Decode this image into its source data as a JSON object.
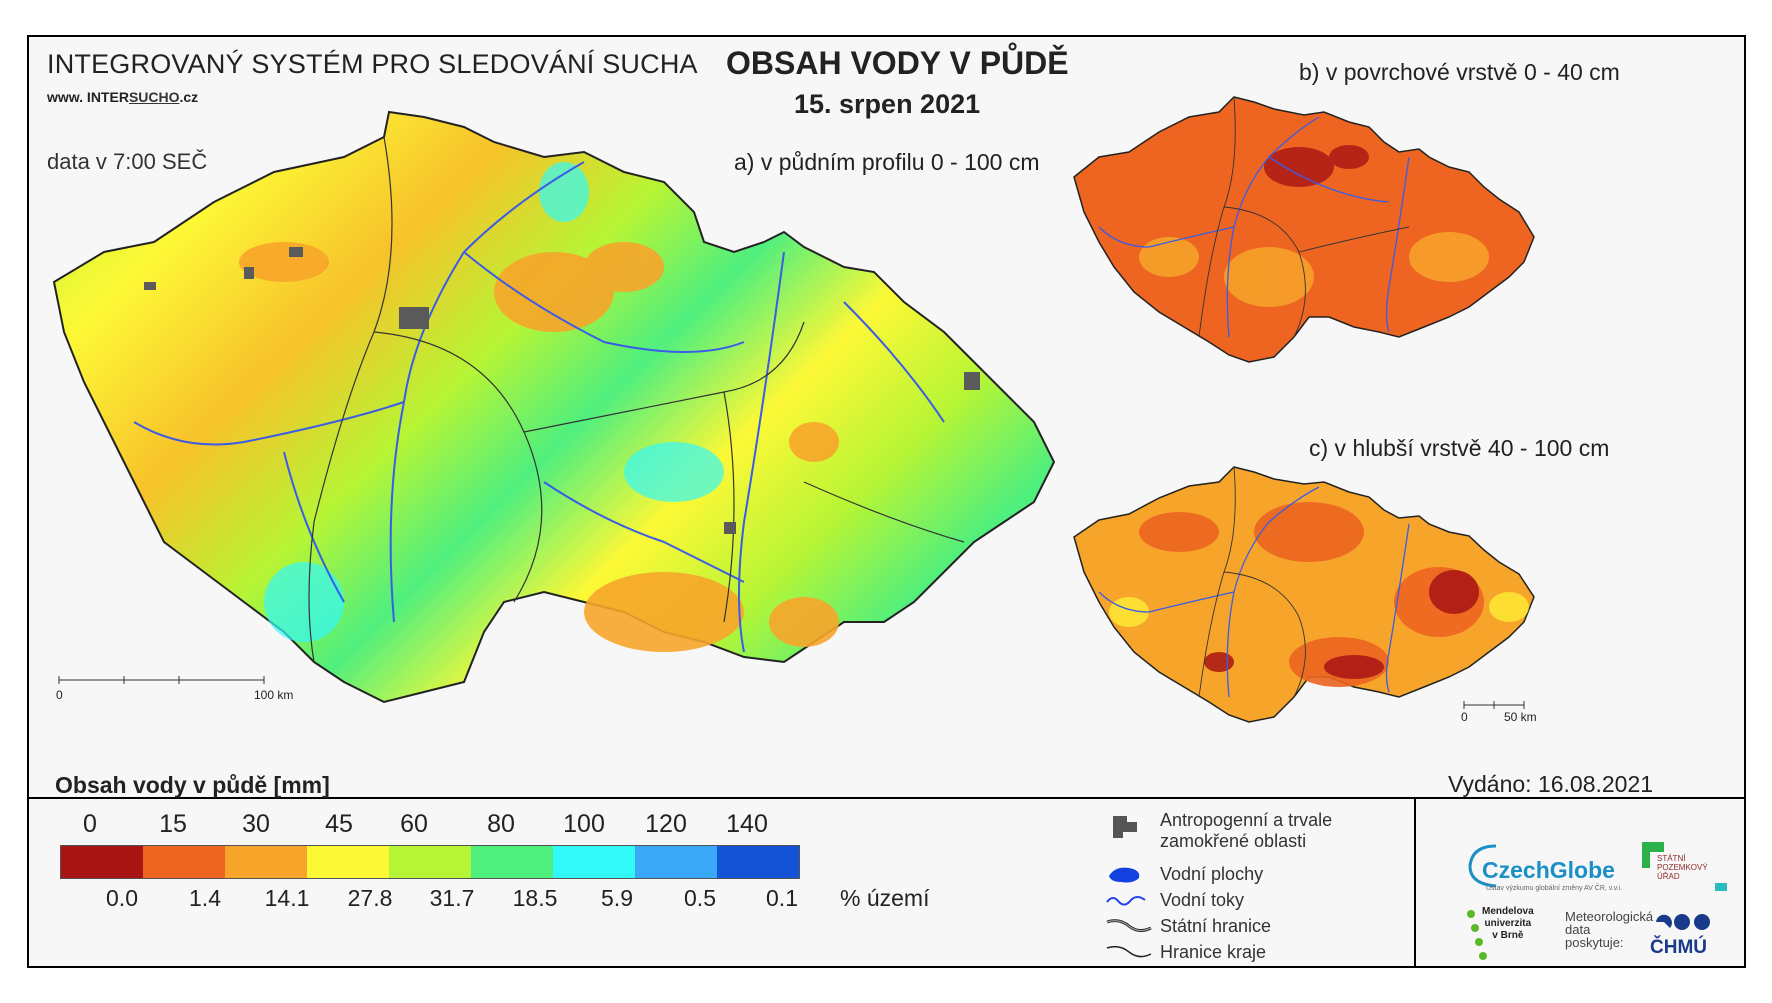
{
  "header": {
    "system_title": "INTEGROVANÝ SYSTÉM PRO SLEDOVÁNÍ SUCHA",
    "url_prefix": "www. INTER",
    "url_underlined": "SUCHO",
    "url_suffix": ".cz",
    "data_time": "data v 7:00 SEČ",
    "main_title": "OBSAH VODY V PŮDĚ",
    "date": "15. srpen 2021"
  },
  "maps": {
    "a": {
      "title": "a) v půdním profilu 0 - 100 cm",
      "scale_start": "0",
      "scale_end": "100 km"
    },
    "b": {
      "title": "b) v povrchové vrstvě 0 - 40 cm"
    },
    "c": {
      "title": "c) v hlubší vrstvě 40 - 100 cm",
      "scale_start": "0",
      "scale_end": "50 km"
    }
  },
  "legend": {
    "title": "Obsah vody v půdě  [mm]",
    "ticks": [
      "0",
      "15",
      "30",
      "45",
      "60",
      "80",
      "100",
      "120",
      "140"
    ],
    "colors": [
      "#a81414",
      "#ed6521",
      "#f7a52a",
      "#fdf836",
      "#b6f535",
      "#4fef7e",
      "#33f8f8",
      "#3aa8f6",
      "#1452d6"
    ],
    "percent_values": [
      "0.0",
      "1.4",
      "14.1",
      "27.8",
      "31.7",
      "18.5",
      "5.9",
      "0.5",
      "0.1"
    ],
    "percent_unit": "% území"
  },
  "symbols": {
    "anthropogenic": "Antropogenní a trvale zamokřené oblasti",
    "water_bodies": "Vodní plochy",
    "rivers": "Vodní toky",
    "state_border": "Státní hranice",
    "region_border": "Hranice kraje"
  },
  "footer": {
    "issued": "Vydáno: 16.08.2021",
    "czechglobe": "CzechGlobe",
    "czechglobe_sub": "Ústav výzkumu globální změny AV ČR, v.v.i.",
    "spu_line1": "STÁTNÍ",
    "spu_line2": "POZEMKOVÝ",
    "spu_line3": "ÚŘAD",
    "mendel_line1": "Mendelova",
    "mendel_line2": "univerzita",
    "mendel_line3": "v Brně",
    "meteo_line1": "Meteorologická",
    "meteo_line2": "data",
    "meteo_line3": "poskytuje:",
    "chmu": "ČHMÚ"
  }
}
